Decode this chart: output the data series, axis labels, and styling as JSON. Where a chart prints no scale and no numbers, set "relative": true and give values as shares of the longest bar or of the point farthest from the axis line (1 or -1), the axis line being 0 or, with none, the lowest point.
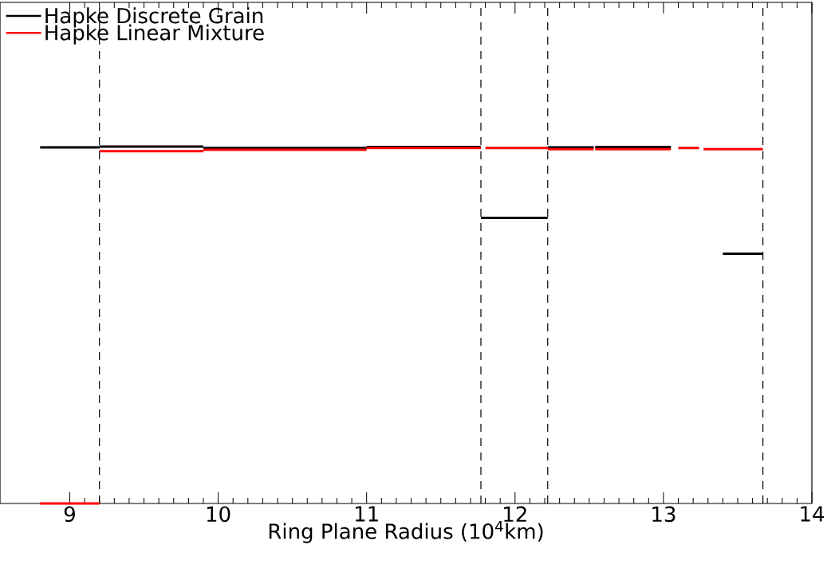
{
  "chart_data": {
    "type": "line",
    "relative": true,
    "xlabel": "Ring Plane Radius (10$^{4}$km)",
    "xlim": [
      8.53,
      14
    ],
    "xticks": [
      9,
      10,
      11,
      12,
      13,
      14
    ],
    "legend": "top left",
    "marker": "none",
    "line_style": "solid",
    "series": [
      {
        "name": "Hapke Discrete Grain",
        "color": "#000000",
        "x": [
          8.8,
          9.2,
          null,
          9.2,
          9.9,
          null,
          9.9,
          11.0,
          null,
          11.0,
          11.77,
          null,
          11.77,
          12.22,
          null,
          12.22,
          12.53,
          null,
          12.54,
          13.05,
          null,
          13.4,
          13.67
        ],
        "values": [
          0.998,
          0.998,
          null,
          1.0,
          1.0,
          null,
          0.996,
          0.996,
          null,
          0.999,
          0.999,
          null,
          0.8,
          0.8,
          null,
          0.998,
          0.998,
          null,
          0.999,
          0.999,
          null,
          0.7,
          0.7
        ]
      },
      {
        "name": "Hapke Linear Mixture",
        "color": "#ff0000",
        "x": [
          8.8,
          9.2,
          null,
          9.2,
          9.9,
          null,
          9.9,
          11.0,
          null,
          11.0,
          11.77,
          null,
          11.8,
          12.22,
          null,
          12.22,
          12.53,
          null,
          12.54,
          13.05,
          null,
          13.1,
          13.24,
          null,
          13.27,
          13.67
        ],
        "values": [
          0,
          0,
          null,
          0.987,
          0.987,
          null,
          0.991,
          0.991,
          null,
          0.996,
          0.996,
          null,
          0.996,
          0.996,
          null,
          0.993,
          0.993,
          null,
          0.993,
          0.993,
          null,
          0.996,
          0.996,
          null,
          0.993,
          0.993
        ]
      }
    ],
    "ref_lines": [
      {
        "axis": "x",
        "value": 9.2,
        "color": "#000000",
        "line_style": "dashed"
      },
      {
        "axis": "x",
        "value": 11.77,
        "color": "#000000",
        "line_style": "dashed"
      },
      {
        "axis": "x",
        "value": 12.22,
        "color": "#000000",
        "line_style": "dashed"
      },
      {
        "axis": "x",
        "value": 13.67,
        "color": "#000000",
        "line_style": "dashed"
      }
    ]
  }
}
